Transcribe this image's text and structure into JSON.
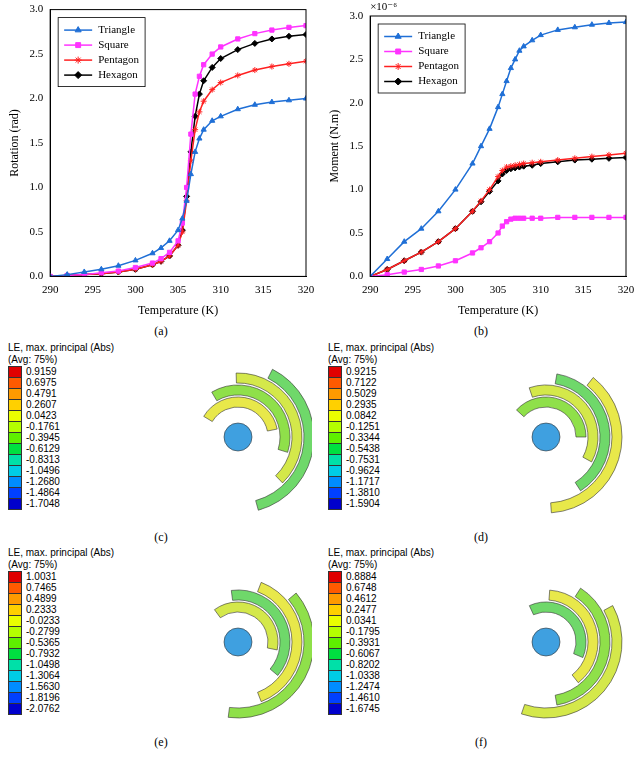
{
  "chart_data": [
    {
      "type": "line",
      "panel_label": "(a)",
      "x_label": "Temperature (K)",
      "y_label": "Rotation (rad)",
      "x": [
        290,
        292,
        294,
        296,
        298,
        300,
        302,
        303,
        304,
        305,
        305.5,
        306,
        306.5,
        307,
        307.5,
        308,
        309,
        310,
        312,
        314,
        316,
        318,
        320
      ],
      "series": [
        {
          "name": "Triangle",
          "color": "#1f6fd6",
          "marker": "triangle",
          "values": [
            0,
            0.02,
            0.05,
            0.08,
            0.12,
            0.18,
            0.26,
            0.32,
            0.4,
            0.52,
            0.65,
            0.85,
            1.15,
            1.4,
            1.55,
            1.65,
            1.75,
            1.8,
            1.88,
            1.93,
            1.96,
            1.98,
            2.0
          ]
        },
        {
          "name": "Square",
          "color": "#ff33ff",
          "marker": "square",
          "values": [
            0,
            0.01,
            0.02,
            0.04,
            0.06,
            0.1,
            0.15,
            0.2,
            0.27,
            0.4,
            0.6,
            1.0,
            1.6,
            2.05,
            2.25,
            2.38,
            2.5,
            2.58,
            2.67,
            2.73,
            2.77,
            2.8,
            2.82
          ]
        },
        {
          "name": "Pentagon",
          "color": "#ff2020",
          "marker": "star",
          "values": [
            0,
            0.01,
            0.02,
            0.03,
            0.05,
            0.08,
            0.13,
            0.17,
            0.23,
            0.35,
            0.5,
            0.85,
            1.3,
            1.65,
            1.85,
            1.97,
            2.1,
            2.18,
            2.26,
            2.32,
            2.36,
            2.39,
            2.42
          ]
        },
        {
          "name": "Hexagon",
          "color": "#000000",
          "marker": "diamond",
          "values": [
            0,
            0.01,
            0.02,
            0.03,
            0.05,
            0.08,
            0.13,
            0.17,
            0.23,
            0.35,
            0.52,
            0.9,
            1.4,
            1.8,
            2.05,
            2.2,
            2.35,
            2.45,
            2.55,
            2.62,
            2.67,
            2.7,
            2.72
          ]
        }
      ],
      "xlim": [
        290,
        320
      ],
      "xticks": [
        290,
        295,
        300,
        305,
        310,
        315,
        320
      ],
      "ylim": [
        0,
        3
      ],
      "yticks": [
        {
          "value": 0,
          "label": "0.0"
        },
        0.5,
        {
          "value": 1,
          "label": "1.0"
        },
        1.5,
        {
          "value": 2,
          "label": "2.0"
        },
        2.5,
        {
          "value": 3,
          "label": "3.0"
        }
      ],
      "grid": false,
      "legend": "upper left"
    },
    {
      "type": "line",
      "panel_label": "(b)",
      "x_label": "Temperature (K)",
      "y_label": "Moment (N.m)",
      "annotations": [
        "×10⁻⁶"
      ],
      "x": [
        290,
        292,
        294,
        296,
        298,
        300,
        302,
        303,
        304,
        305,
        305.5,
        306,
        306.5,
        307,
        307.5,
        308,
        309,
        310,
        312,
        314,
        316,
        318,
        320
      ],
      "series": [
        {
          "name": "Triangle",
          "color": "#1f6fd6",
          "marker": "triangle",
          "values": [
            0,
            0.2,
            0.4,
            0.55,
            0.75,
            1.0,
            1.3,
            1.5,
            1.7,
            1.95,
            2.1,
            2.25,
            2.4,
            2.5,
            2.6,
            2.65,
            2.72,
            2.78,
            2.84,
            2.87,
            2.9,
            2.92,
            2.93
          ]
        },
        {
          "name": "Square",
          "color": "#ff33ff",
          "marker": "square",
          "values": [
            0,
            0.02,
            0.05,
            0.08,
            0.12,
            0.18,
            0.27,
            0.33,
            0.4,
            0.5,
            0.58,
            0.63,
            0.66,
            0.67,
            0.67,
            0.67,
            0.67,
            0.67,
            0.68,
            0.68,
            0.68,
            0.68,
            0.68
          ]
        },
        {
          "name": "Pentagon",
          "color": "#ff2020",
          "marker": "star",
          "values": [
            0,
            0.08,
            0.18,
            0.28,
            0.4,
            0.55,
            0.75,
            0.87,
            1.0,
            1.15,
            1.22,
            1.26,
            1.27,
            1.28,
            1.29,
            1.3,
            1.31,
            1.32,
            1.34,
            1.36,
            1.38,
            1.4,
            1.42
          ]
        },
        {
          "name": "Hexagon",
          "color": "#000000",
          "marker": "diamond",
          "values": [
            0,
            0.08,
            0.18,
            0.28,
            0.4,
            0.55,
            0.75,
            0.86,
            0.98,
            1.1,
            1.18,
            1.22,
            1.24,
            1.25,
            1.26,
            1.27,
            1.28,
            1.3,
            1.32,
            1.34,
            1.35,
            1.36,
            1.37
          ]
        }
      ],
      "xlim": [
        290,
        320
      ],
      "xticks": [
        290,
        295,
        300,
        305,
        310,
        315,
        320
      ],
      "ylim": [
        0,
        3
      ],
      "yticks": [
        {
          "value": 0,
          "label": "0.0"
        },
        0.5,
        {
          "value": 1,
          "label": "1.0"
        },
        1.5,
        {
          "value": 2,
          "label": "2.0"
        },
        2.5,
        {
          "value": 3,
          "label": "3.0"
        }
      ],
      "grid": false,
      "legend": "upper left"
    }
  ],
  "contour_panels": [
    {
      "panel_label": "(c)",
      "title": "LE, max. principal (Abs)",
      "subtitle": "(Avg: 75%)",
      "levels": [
        "0.9159",
        "0.6975",
        "0.4791",
        "0.2607",
        "0.0423",
        "-0.1761",
        "-0.3945",
        "-0.6129",
        "-0.8313",
        "-1.0496",
        "-1.2680",
        "-1.4864",
        "-1.7048"
      ]
    },
    {
      "panel_label": "(d)",
      "title": "LE, max. principal (Abs)",
      "subtitle": "(Avg: 75%)",
      "levels": [
        "0.9215",
        "0.7122",
        "0.5029",
        "0.2935",
        "0.0842",
        "-0.1251",
        "-0.3344",
        "-0.5438",
        "-0.7531",
        "-0.9624",
        "-1.1717",
        "-1.3810",
        "-1.5904"
      ]
    },
    {
      "panel_label": "(e)",
      "title": "LE, max. principal (Abs)",
      "subtitle": "(Avg: 75%)",
      "levels": [
        "1.0031",
        "0.7465",
        "0.4899",
        "0.2333",
        "-0.0233",
        "-0.2799",
        "-0.5365",
        "-0.7932",
        "-1.0498",
        "-1.3064",
        "-1.5630",
        "-1.8196",
        "-2.0762"
      ]
    },
    {
      "panel_label": "(f)",
      "title": "LE, max. principal (Abs)",
      "subtitle": "(Avg: 75%)",
      "levels": [
        "0.8884",
        "0.6748",
        "0.4612",
        "0.2477",
        "0.0341",
        "-0.1795",
        "-0.3931",
        "-0.6067",
        "-0.8202",
        "-1.0338",
        "-1.2474",
        "-1.4610",
        "-1.6745"
      ]
    }
  ]
}
